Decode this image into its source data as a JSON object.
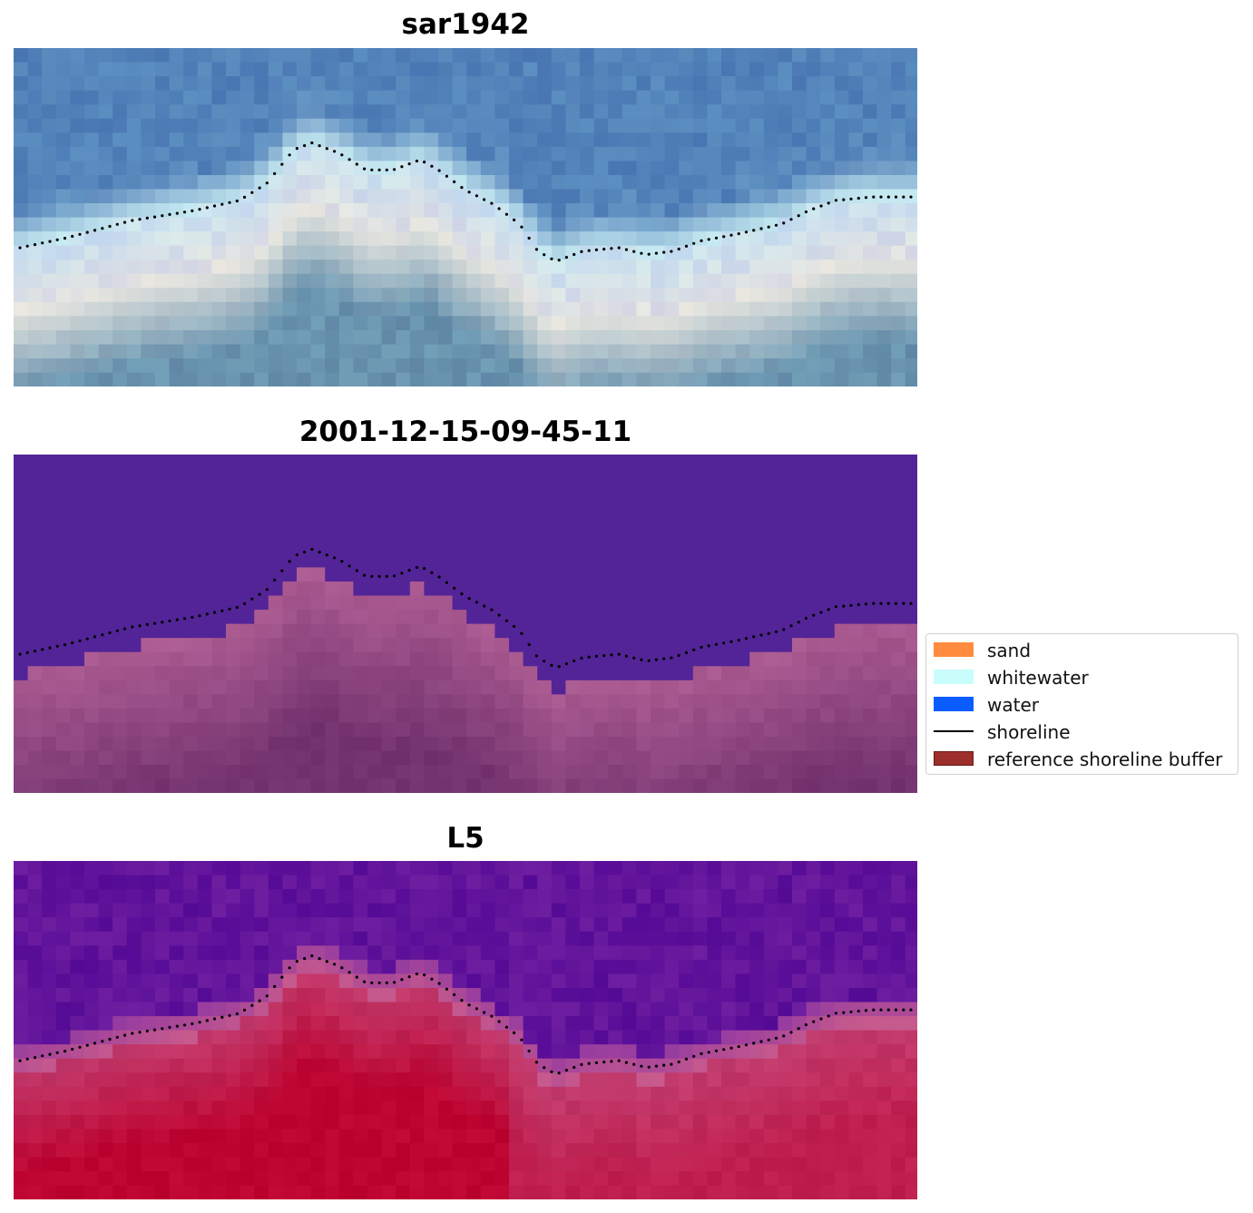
{
  "chart_data": [
    {
      "type": "image",
      "title": "sar1942",
      "render": "rgb",
      "grid": false
    },
    {
      "type": "image",
      "title": "2001-12-15-09-45-11",
      "render": "classification",
      "grid": false
    },
    {
      "type": "image",
      "title": "L5",
      "render": "index",
      "grid": false
    }
  ],
  "legend": {
    "placement": "right",
    "items": [
      {
        "label": "sand",
        "kind": "patch",
        "color": "#ff8c3e"
      },
      {
        "label": "whitewater",
        "kind": "patch",
        "color": "#c8fdfb"
      },
      {
        "label": "water",
        "kind": "patch",
        "color": "#0a5cff"
      },
      {
        "label": "shoreline",
        "kind": "line",
        "color": "#000000"
      },
      {
        "label": "reference shoreline buffer",
        "kind": "patch",
        "color": "#9c2f2b",
        "edge": "#6e1a17"
      }
    ]
  },
  "colors": {
    "water_class": "#532497",
    "sand_class": "#a85a8e"
  }
}
